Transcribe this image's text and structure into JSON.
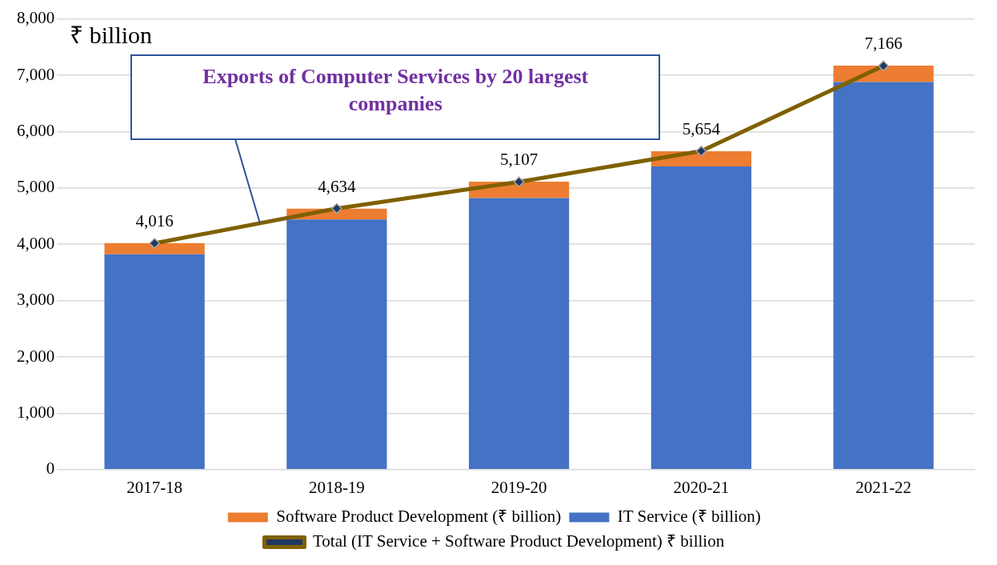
{
  "chart_data": {
    "type": "bar",
    "title": "Exports of Computer Services by 20 largest companies",
    "ylabel": "₹ billion",
    "categories": [
      "2017-18",
      "2018-19",
      "2019-20",
      "2020-21",
      "2021-22"
    ],
    "stacked": true,
    "series": [
      {
        "name": "IT Service (₹ billion)",
        "color": "#4472c4",
        "values": [
          3820,
          4440,
          4820,
          5380,
          6880
        ]
      },
      {
        "name": "Software Product Development (₹ billion)",
        "color": "#ed7d31",
        "values": [
          200,
          190,
          290,
          270,
          290
        ]
      },
      {
        "name": "Total (IT Service + Software Product Development) ₹ billion",
        "type": "line",
        "color": "#7f6000",
        "marker": "diamond",
        "values": [
          4016,
          4634,
          5107,
          5654,
          7166
        ],
        "value_labels": [
          "4,016",
          "4,634",
          "5,107",
          "5,654",
          "7,166"
        ]
      }
    ],
    "ylim": [
      0,
      8000
    ],
    "yticks": [
      0,
      {
        "value": 1000,
        "label": "1,000"
      },
      {
        "value": 2000,
        "label": "2,000"
      },
      {
        "value": 3000,
        "label": "3,000"
      },
      {
        "value": 4000,
        "label": "4,000"
      },
      {
        "value": 5000,
        "label": "5,000"
      },
      {
        "value": 6000,
        "label": "6,000"
      },
      {
        "value": 7000,
        "label": "7,000"
      },
      {
        "value": 8000,
        "label": "8,000"
      }
    ],
    "grid": "y",
    "legend": "bottom"
  }
}
